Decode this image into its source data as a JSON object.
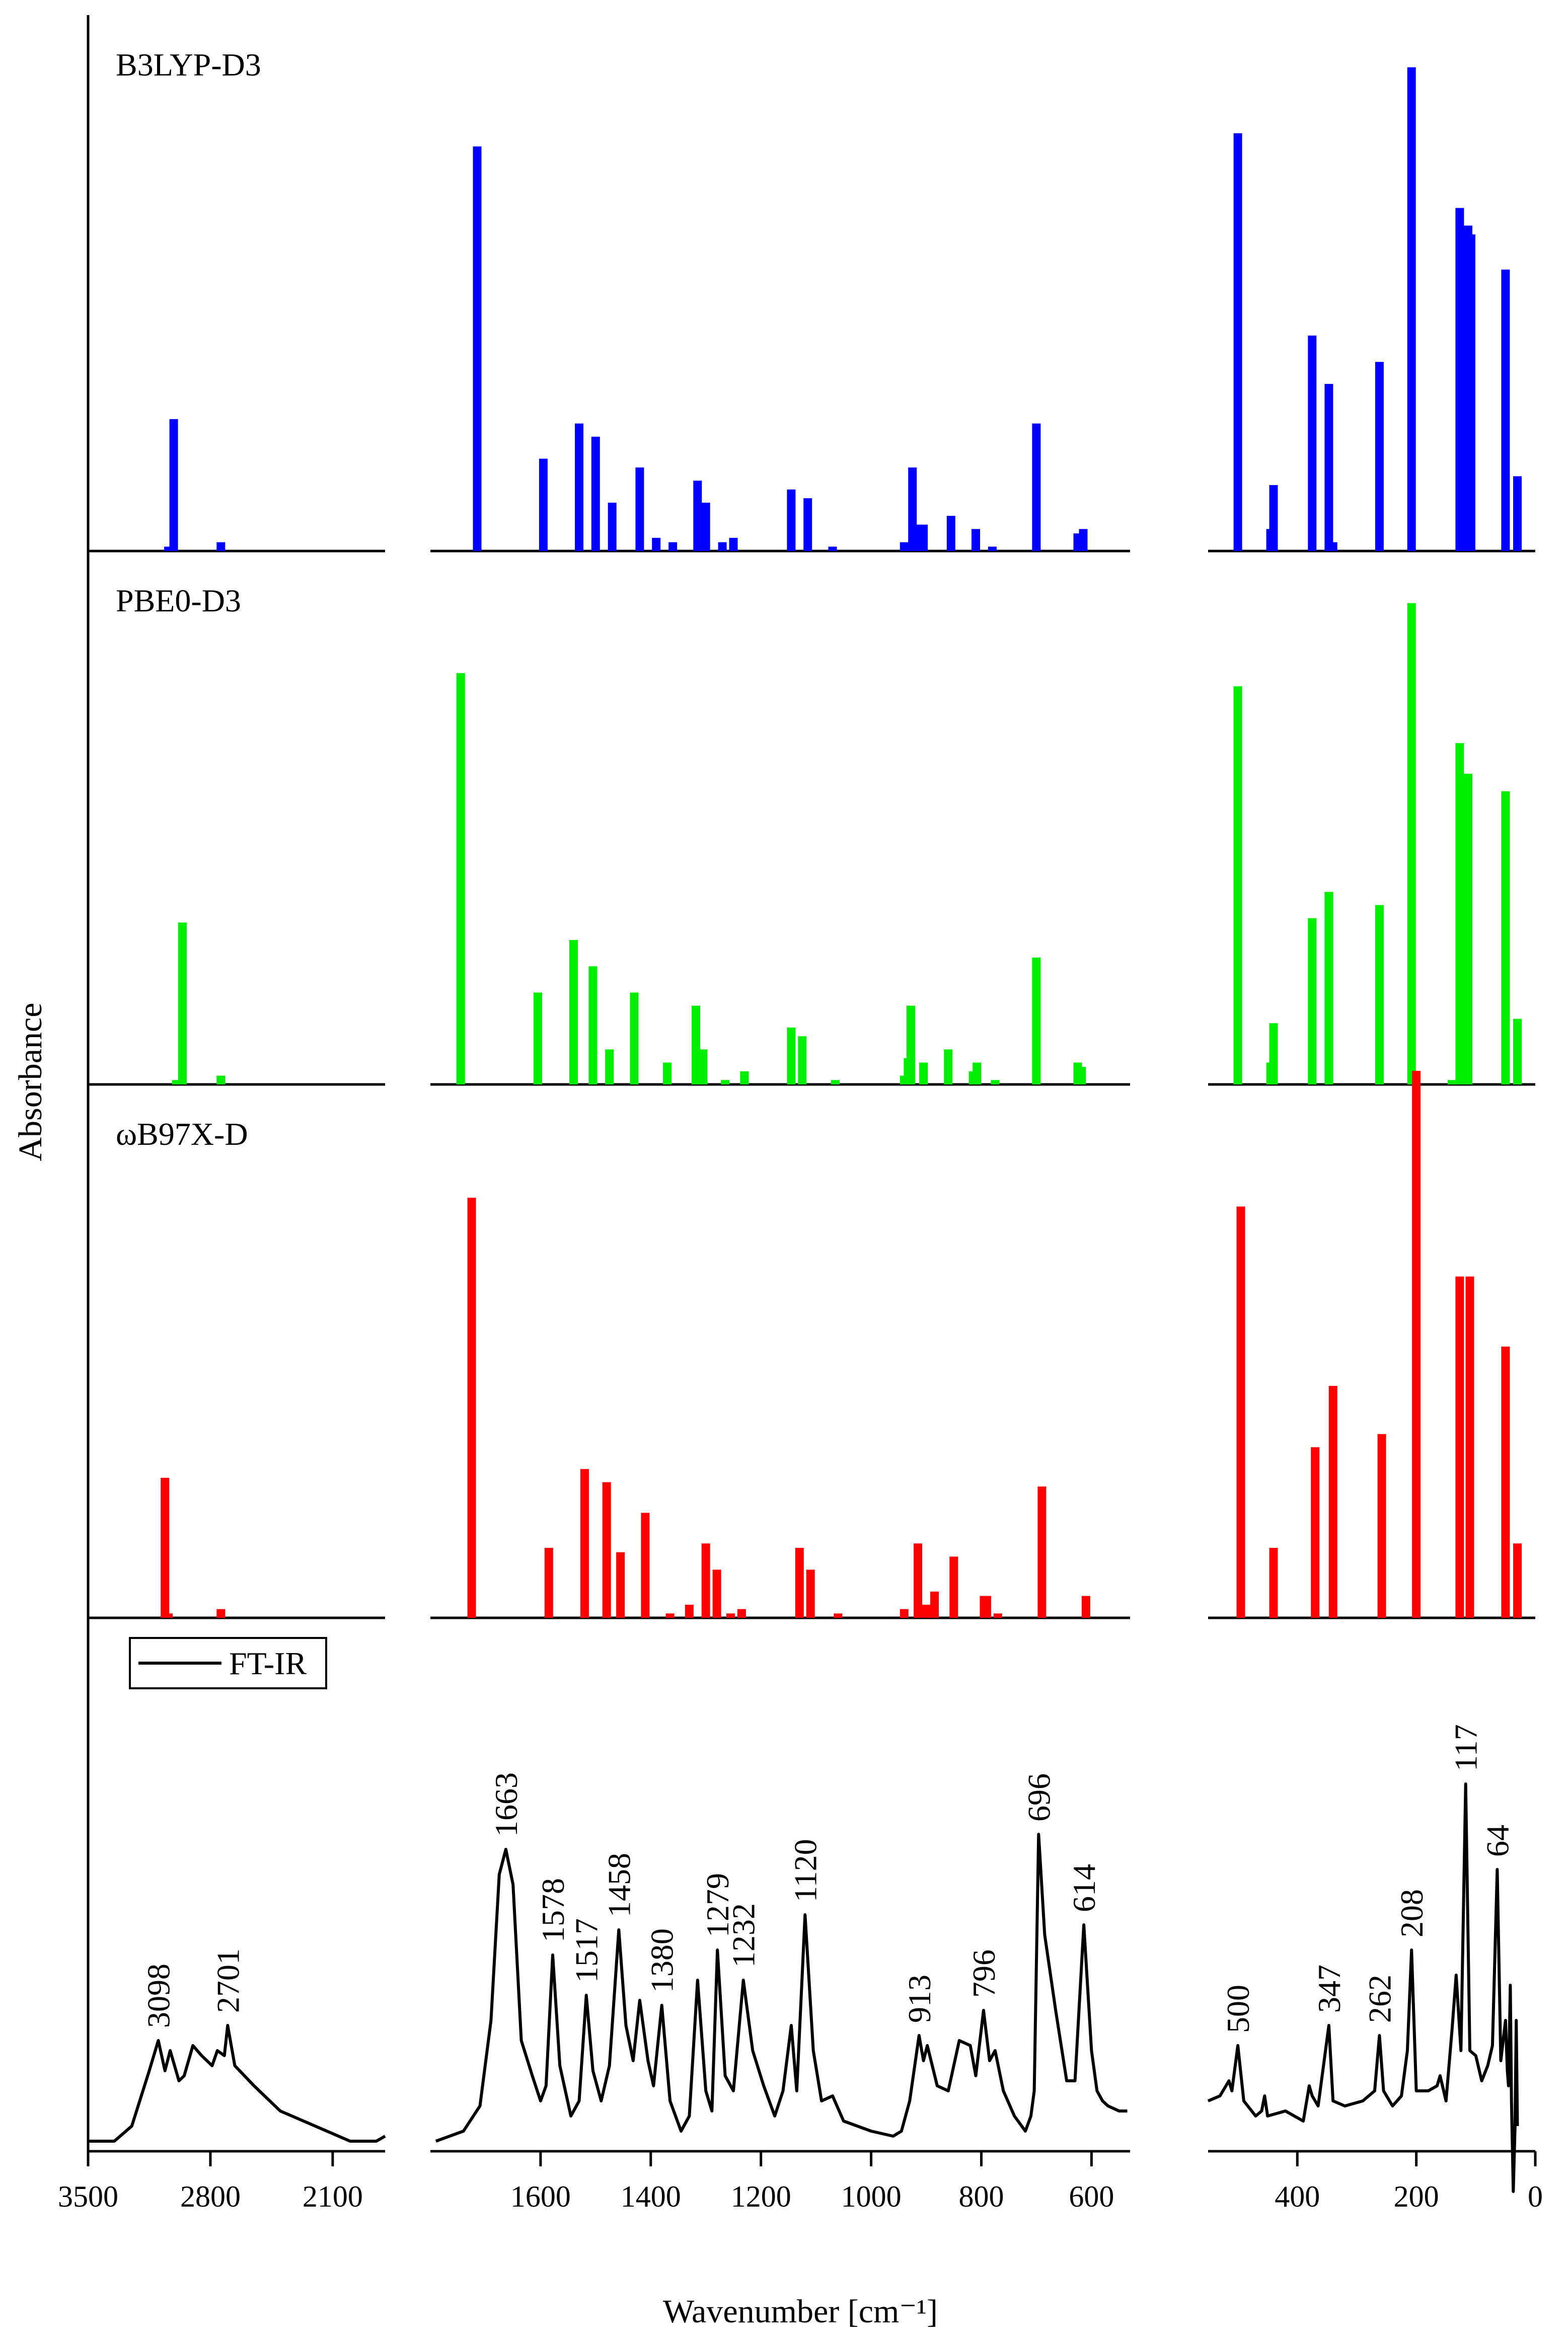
{
  "chart_data": {
    "type": "bar",
    "ylabel": "Absorbance",
    "xlabel": "Wavenumber [cm⁻¹]",
    "x_segments": [
      {
        "range": [
          3500,
          1800
        ],
        "ticks": [
          3500,
          2800,
          2100
        ],
        "tick_labels": [
          "3500",
          "2800",
          "2100"
        ]
      },
      {
        "range": [
          1800,
          530
        ],
        "ticks": [
          1600,
          1400,
          1200,
          1000,
          800,
          600
        ],
        "tick_labels": [
          "1600",
          "1400",
          "1200",
          "1000",
          "800",
          "600"
        ]
      },
      {
        "range": [
          550,
          0
        ],
        "ticks": [
          400,
          200,
          0
        ],
        "tick_labels": [
          "400",
          "200",
          "0"
        ]
      }
    ],
    "series": [
      {
        "name": "B3LYP-D3",
        "color": "#0000ff",
        "ylim": [
          0,
          1.15
        ],
        "sticks": [
          [
            3010,
            0.3
          ],
          [
            3040,
            0.01
          ],
          [
            2740,
            0.02
          ],
          [
            1715,
            0.92
          ],
          [
            1595,
            0.21
          ],
          [
            1530,
            0.29
          ],
          [
            1500,
            0.26
          ],
          [
            1470,
            0.11
          ],
          [
            1420,
            0.19
          ],
          [
            1390,
            0.03
          ],
          [
            1360,
            0.02
          ],
          [
            1315,
            0.16
          ],
          [
            1300,
            0.11
          ],
          [
            1270,
            0.02
          ],
          [
            1250,
            0.03
          ],
          [
            1145,
            0.14
          ],
          [
            1115,
            0.12
          ],
          [
            1070,
            0.01
          ],
          [
            940,
            0.02
          ],
          [
            925,
            0.19
          ],
          [
            915,
            0.06
          ],
          [
            905,
            0.06
          ],
          [
            855,
            0.08
          ],
          [
            810,
            0.05
          ],
          [
            780,
            0.01
          ],
          [
            700,
            0.29
          ],
          [
            625,
            0.04
          ],
          [
            615,
            0.05
          ],
          [
            500,
            0.95
          ],
          [
            445,
            0.05
          ],
          [
            440,
            0.15
          ],
          [
            375,
            0.49
          ],
          [
            347,
            0.38
          ],
          [
            340,
            0.02
          ],
          [
            262,
            0.43
          ],
          [
            208,
            1.1
          ],
          [
            127,
            0.78
          ],
          [
            113,
            0.74
          ],
          [
            108,
            0.72
          ],
          [
            50,
            0.64
          ],
          [
            30,
            0.17
          ]
        ]
      },
      {
        "name": "PBE0-D3",
        "color": "#00ee00",
        "ylim": [
          0,
          1.15
        ],
        "sticks": [
          [
            2960,
            0.37
          ],
          [
            2995,
            0.01
          ],
          [
            2740,
            0.02
          ],
          [
            1745,
            0.94
          ],
          [
            1605,
            0.21
          ],
          [
            1540,
            0.33
          ],
          [
            1505,
            0.27
          ],
          [
            1475,
            0.08
          ],
          [
            1430,
            0.21
          ],
          [
            1370,
            0.05
          ],
          [
            1318,
            0.18
          ],
          [
            1305,
            0.08
          ],
          [
            1265,
            0.01
          ],
          [
            1230,
            0.03
          ],
          [
            1145,
            0.13
          ],
          [
            1125,
            0.11
          ],
          [
            1065,
            0.01
          ],
          [
            940,
            0.02
          ],
          [
            933,
            0.06
          ],
          [
            928,
            0.18
          ],
          [
            905,
            0.05
          ],
          [
            860,
            0.08
          ],
          [
            815,
            0.03
          ],
          [
            808,
            0.05
          ],
          [
            775,
            0.01
          ],
          [
            700,
            0.29
          ],
          [
            625,
            0.05
          ],
          [
            618,
            0.04
          ],
          [
            500,
            0.91
          ],
          [
            445,
            0.05
          ],
          [
            440,
            0.14
          ],
          [
            375,
            0.38
          ],
          [
            347,
            0.44
          ],
          [
            262,
            0.41
          ],
          [
            208,
            1.1
          ],
          [
            140,
            0.01
          ],
          [
            127,
            0.78
          ],
          [
            113,
            0.71
          ],
          [
            50,
            0.67
          ],
          [
            30,
            0.15
          ]
        ]
      },
      {
        "name": "ωB97X-D",
        "color": "#ff0000",
        "ylim": [
          0,
          1.15
        ],
        "sticks": [
          [
            3060,
            0.32
          ],
          [
            3040,
            0.01
          ],
          [
            2740,
            0.02
          ],
          [
            1725,
            0.96
          ],
          [
            1585,
            0.16
          ],
          [
            1520,
            0.34
          ],
          [
            1480,
            0.31
          ],
          [
            1455,
            0.15
          ],
          [
            1410,
            0.24
          ],
          [
            1365,
            0.01
          ],
          [
            1330,
            0.03
          ],
          [
            1300,
            0.17
          ],
          [
            1280,
            0.11
          ],
          [
            1255,
            0.01
          ],
          [
            1235,
            0.02
          ],
          [
            1130,
            0.16
          ],
          [
            1110,
            0.11
          ],
          [
            1060,
            0.01
          ],
          [
            940,
            0.02
          ],
          [
            915,
            0.17
          ],
          [
            900,
            0.03
          ],
          [
            885,
            0.06
          ],
          [
            850,
            0.14
          ],
          [
            795,
            0.05
          ],
          [
            790,
            0.05
          ],
          [
            770,
            0.01
          ],
          [
            690,
            0.3
          ],
          [
            610,
            0.05
          ],
          [
            495,
            0.94
          ],
          [
            440,
            0.16
          ],
          [
            370,
            0.39
          ],
          [
            340,
            0.53
          ],
          [
            258,
            0.42
          ],
          [
            200,
            1.25
          ],
          [
            127,
            0.78
          ],
          [
            110,
            0.78
          ],
          [
            50,
            0.62
          ],
          [
            30,
            0.17
          ]
        ]
      }
    ],
    "experimental": {
      "name": "FT-IR",
      "legend_label": "FT-IR",
      "ylim": [
        0,
        1.0
      ],
      "annotations": [
        {
          "x": 3098,
          "label": "3098"
        },
        {
          "x": 2701,
          "label": "2701"
        },
        {
          "x": 1663,
          "label": "1663"
        },
        {
          "x": 1578,
          "label": "1578"
        },
        {
          "x": 1517,
          "label": "1517"
        },
        {
          "x": 1458,
          "label": "1458"
        },
        {
          "x": 1380,
          "label": "1380"
        },
        {
          "x": 1279,
          "label": "1279"
        },
        {
          "x": 1232,
          "label": "1232"
        },
        {
          "x": 1120,
          "label": "1120"
        },
        {
          "x": 913,
          "label": "913"
        },
        {
          "x": 796,
          "label": "796"
        },
        {
          "x": 696,
          "label": "696"
        },
        {
          "x": 614,
          "label": "614"
        },
        {
          "x": 500,
          "label": "500"
        },
        {
          "x": 347,
          "label": "347"
        },
        {
          "x": 262,
          "label": "262"
        },
        {
          "x": 208,
          "label": "208"
        },
        {
          "x": 117,
          "label": "117"
        },
        {
          "x": 64,
          "label": "64"
        }
      ],
      "segments": [
        [
          [
            3500,
            0.02
          ],
          [
            3350,
            0.02
          ],
          [
            3250,
            0.05
          ],
          [
            3150,
            0.16
          ],
          [
            3098,
            0.22
          ],
          [
            3060,
            0.16
          ],
          [
            3030,
            0.2
          ],
          [
            2980,
            0.14
          ],
          [
            2950,
            0.15
          ],
          [
            2900,
            0.21
          ],
          [
            2850,
            0.19
          ],
          [
            2790,
            0.17
          ],
          [
            2760,
            0.2
          ],
          [
            2720,
            0.19
          ],
          [
            2701,
            0.25
          ],
          [
            2660,
            0.17
          ],
          [
            2550,
            0.13
          ],
          [
            2400,
            0.08
          ],
          [
            2200,
            0.05
          ],
          [
            2000,
            0.02
          ],
          [
            1850,
            0.02
          ],
          [
            1800,
            0.03
          ]
        ],
        [
          [
            1790,
            0.02
          ],
          [
            1740,
            0.04
          ],
          [
            1710,
            0.09
          ],
          [
            1690,
            0.26
          ],
          [
            1675,
            0.55
          ],
          [
            1663,
            0.6
          ],
          [
            1650,
            0.53
          ],
          [
            1635,
            0.22
          ],
          [
            1615,
            0.15
          ],
          [
            1600,
            0.1
          ],
          [
            1590,
            0.13
          ],
          [
            1578,
            0.39
          ],
          [
            1565,
            0.17
          ],
          [
            1545,
            0.07
          ],
          [
            1530,
            0.1
          ],
          [
            1517,
            0.31
          ],
          [
            1505,
            0.16
          ],
          [
            1490,
            0.1
          ],
          [
            1475,
            0.17
          ],
          [
            1458,
            0.44
          ],
          [
            1445,
            0.25
          ],
          [
            1432,
            0.18
          ],
          [
            1420,
            0.3
          ],
          [
            1405,
            0.18
          ],
          [
            1395,
            0.13
          ],
          [
            1380,
            0.29
          ],
          [
            1365,
            0.1
          ],
          [
            1345,
            0.04
          ],
          [
            1330,
            0.07
          ],
          [
            1315,
            0.34
          ],
          [
            1300,
            0.12
          ],
          [
            1289,
            0.08
          ],
          [
            1279,
            0.4
          ],
          [
            1265,
            0.15
          ],
          [
            1250,
            0.12
          ],
          [
            1232,
            0.34
          ],
          [
            1215,
            0.2
          ],
          [
            1195,
            0.13
          ],
          [
            1175,
            0.07
          ],
          [
            1160,
            0.12
          ],
          [
            1145,
            0.25
          ],
          [
            1135,
            0.12
          ],
          [
            1120,
            0.47
          ],
          [
            1105,
            0.2
          ],
          [
            1090,
            0.1
          ],
          [
            1070,
            0.11
          ],
          [
            1050,
            0.06
          ],
          [
            1000,
            0.04
          ],
          [
            960,
            0.03
          ],
          [
            945,
            0.04
          ],
          [
            930,
            0.1
          ],
          [
            913,
            0.23
          ],
          [
            905,
            0.18
          ],
          [
            898,
            0.21
          ],
          [
            880,
            0.13
          ],
          [
            860,
            0.12
          ],
          [
            840,
            0.22
          ],
          [
            820,
            0.21
          ],
          [
            810,
            0.15
          ],
          [
            796,
            0.28
          ],
          [
            785,
            0.18
          ],
          [
            775,
            0.2
          ],
          [
            760,
            0.12
          ],
          [
            740,
            0.07
          ],
          [
            720,
            0.04
          ],
          [
            710,
            0.07
          ],
          [
            704,
            0.12
          ],
          [
            696,
            0.63
          ],
          [
            685,
            0.43
          ],
          [
            665,
            0.28
          ],
          [
            645,
            0.14
          ],
          [
            630,
            0.14
          ],
          [
            614,
            0.45
          ],
          [
            600,
            0.2
          ],
          [
            590,
            0.12
          ],
          [
            580,
            0.1
          ],
          [
            570,
            0.09
          ],
          [
            550,
            0.08
          ],
          [
            535,
            0.08
          ]
        ],
        [
          [
            550,
            0.1
          ],
          [
            530,
            0.11
          ],
          [
            520,
            0.13
          ],
          [
            515,
            0.14
          ],
          [
            510,
            0.12
          ],
          [
            500,
            0.21
          ],
          [
            490,
            0.1
          ],
          [
            470,
            0.07
          ],
          [
            460,
            0.08
          ],
          [
            455,
            0.11
          ],
          [
            450,
            0.07
          ],
          [
            420,
            0.08
          ],
          [
            390,
            0.06
          ],
          [
            380,
            0.13
          ],
          [
            375,
            0.11
          ],
          [
            365,
            0.09
          ],
          [
            347,
            0.25
          ],
          [
            340,
            0.1
          ],
          [
            320,
            0.09
          ],
          [
            290,
            0.1
          ],
          [
            270,
            0.12
          ],
          [
            262,
            0.23
          ],
          [
            255,
            0.12
          ],
          [
            240,
            0.09
          ],
          [
            225,
            0.11
          ],
          [
            215,
            0.2
          ],
          [
            208,
            0.4
          ],
          [
            200,
            0.12
          ],
          [
            180,
            0.12
          ],
          [
            165,
            0.13
          ],
          [
            160,
            0.15
          ],
          [
            150,
            0.1
          ],
          [
            140,
            0.24
          ],
          [
            133,
            0.35
          ],
          [
            125,
            0.2
          ],
          [
            117,
            0.73
          ],
          [
            110,
            0.2
          ],
          [
            100,
            0.19
          ],
          [
            90,
            0.14
          ],
          [
            80,
            0.17
          ],
          [
            72,
            0.21
          ],
          [
            64,
            0.56
          ],
          [
            58,
            0.18
          ],
          [
            54,
            0.22
          ],
          [
            50,
            0.26
          ],
          [
            47,
            0.16
          ],
          [
            45,
            0.13
          ],
          [
            42,
            0.33
          ],
          [
            40,
            0.1
          ],
          [
            37,
            -0.08
          ],
          [
            34,
            0.05
          ],
          [
            32,
            0.26
          ],
          [
            30,
            0.05
          ]
        ]
      ]
    }
  }
}
